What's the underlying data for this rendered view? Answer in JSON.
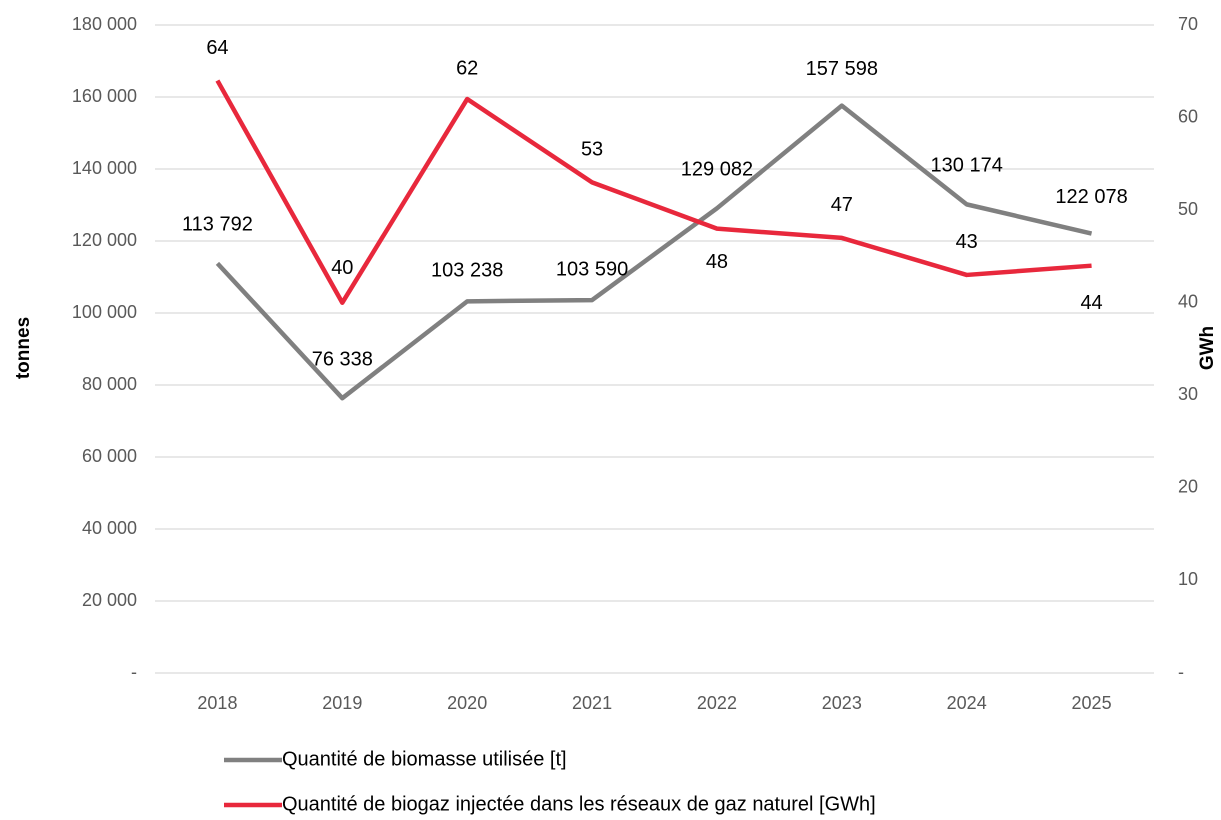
{
  "chart_data": {
    "type": "line",
    "categories": [
      "2018",
      "2019",
      "2020",
      "2021",
      "2022",
      "2023",
      "2024",
      "2025"
    ],
    "y_label": "tonnes",
    "y2_label": "GWh",
    "ylim": [
      0,
      180000
    ],
    "yticks": [
      {
        "value": 0,
        "label": "-"
      },
      {
        "value": 20000,
        "label": "20 000"
      },
      {
        "value": 40000,
        "label": "40 000"
      },
      {
        "value": 60000,
        "label": "60 000"
      },
      {
        "value": 80000,
        "label": "80 000"
      },
      {
        "value": 100000,
        "label": "100 000"
      },
      {
        "value": 120000,
        "label": "120 000"
      },
      {
        "value": 140000,
        "label": "140 000"
      },
      {
        "value": 160000,
        "label": "160 000"
      },
      {
        "value": 180000,
        "label": "180 000"
      }
    ],
    "y2lim": [
      0,
      70
    ],
    "y2ticks": [
      {
        "value": 0,
        "label": "-"
      },
      10,
      20,
      30,
      40,
      50,
      60,
      70
    ],
    "grid": true,
    "legend": "bottom",
    "series": [
      {
        "name": "Quantité de biomasse utilisée [t]",
        "color": "#808080",
        "values": [
          113792,
          76338,
          103238,
          103590,
          129082,
          157598,
          130174,
          122078
        ],
        "value_labels": [
          "113 792",
          "76 338",
          "103 238",
          "103 590",
          "129 082",
          "157 598",
          "130 174",
          "122 078"
        ]
      },
      {
        "name": "Quantité de biogaz injectée dans les réseaux de gaz naturel [GWh]",
        "color": "#e8283c",
        "axis": "y2",
        "values": [
          64,
          40,
          62,
          53,
          48,
          47,
          43,
          44
        ]
      }
    ]
  }
}
